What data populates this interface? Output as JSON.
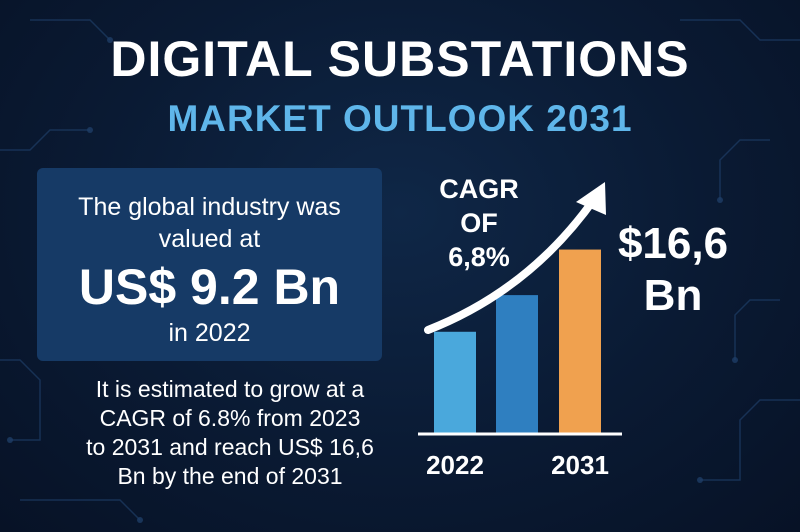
{
  "title": "DIGITAL SUBSTATIONS",
  "subtitle": "MARKET OUTLOOK 2031",
  "value_card": {
    "line1": "The global industry was",
    "line2": "valued at",
    "value": "US$ 9.2 Bn",
    "year": "in 2022"
  },
  "estimate": {
    "line1": "It is estimated to grow at a",
    "line2": "CAGR of 6.8% from 2023",
    "line3": "to 2031 and reach US$ 16,6",
    "line4": "Bn by the end of 2031"
  },
  "cagr": {
    "line1": "CAGR OF",
    "line2": "6,8%"
  },
  "forecast": {
    "line1": "$16,6",
    "line2": "Bn"
  },
  "colors": {
    "background": "#0a1a33",
    "card": "#163a66",
    "subtitle": "#5fb6ea",
    "bar_light_blue": "#4aa8dc",
    "bar_mid_blue": "#2f7fc0",
    "bar_orange": "#f0a14f"
  },
  "chart_data": {
    "type": "bar",
    "categories": [
      "2022",
      "",
      "2031"
    ],
    "values": [
      9.2,
      12.5,
      16.6
    ],
    "ylim": [
      0,
      18
    ],
    "grid": false,
    "legend": "none",
    "bar_colors": [
      "#4aa8dc",
      "#2f7fc0",
      "#f0a14f"
    ],
    "annotation": "growth-arrow"
  }
}
